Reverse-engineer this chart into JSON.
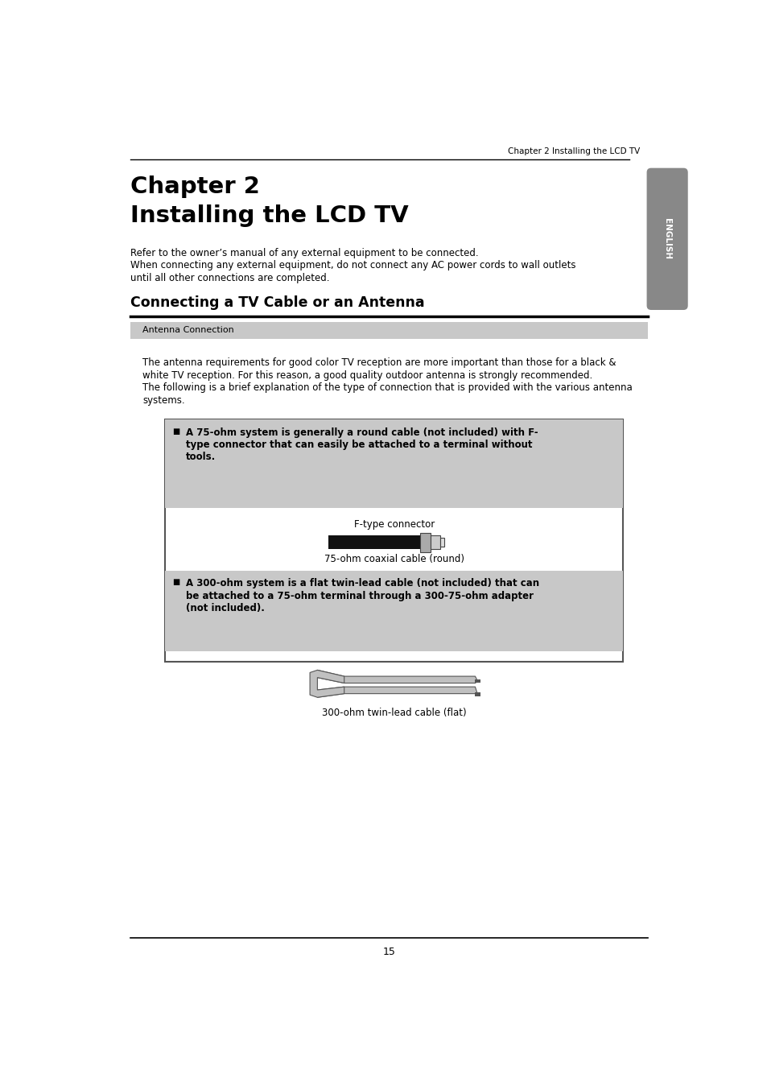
{
  "page_width": 9.54,
  "page_height": 13.54,
  "bg_color": "#ffffff",
  "header_line_color": "#000000",
  "header_text": "Chapter 2 Installing the LCD TV",
  "chapter_title_line1": "Chapter 2",
  "chapter_title_line2": "Installing the LCD TV",
  "intro_text_line1": "Refer to the owner’s manual of any external equipment to be connected.",
  "intro_text_line2": "When connecting any external equipment, do not connect any AC power cords to wall outlets",
  "intro_text_line3": "until all other connections are completed.",
  "section_title": "Connecting a TV Cable or an Antenna",
  "antenna_box_label": "Antenna Connection",
  "antenna_desc_line1": "The antenna requirements for good color TV reception are more important than those for a black &",
  "antenna_desc_line2": "white TV reception. For this reason, a good quality outdoor antenna is strongly recommended.",
  "antenna_desc_line3": "The following is a brief explanation of the type of connection that is provided with the various antenna",
  "antenna_desc_line4": "systems.",
  "box1_label1": "F-type connector",
  "box1_label2": "75-ohm coaxial cable (round)",
  "box2_label": "300-ohm twin-lead cable (flat)",
  "page_number": "15",
  "english_tab_color": "#888888",
  "english_tab_text": "ENGLISH",
  "gray_shade": "#c8c8c8",
  "box_border_color": "#555555",
  "antenna_box_bg": "#c8c8c8"
}
